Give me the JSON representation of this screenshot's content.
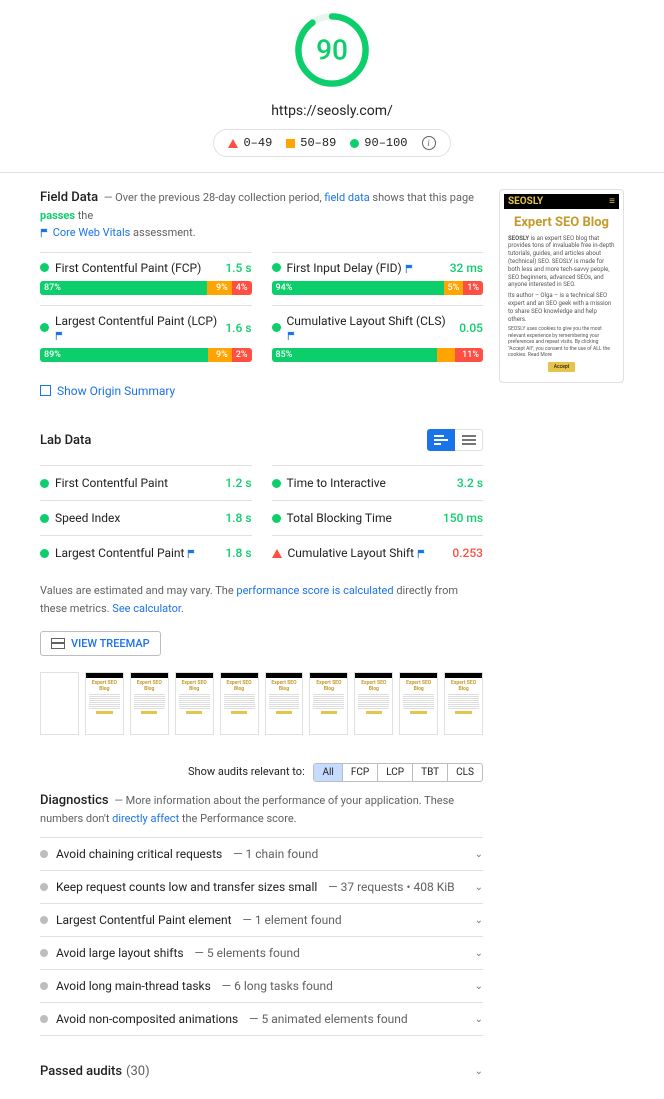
{
  "colors": {
    "good": "#0cce6b",
    "avg": "#ffa400",
    "poor": "#ff4e42",
    "link": "#1a73e8",
    "text_muted": "#616161"
  },
  "header": {
    "score": 90,
    "score_color": "#0cce6b",
    "gauge_percent": 90,
    "url": "https://seosly.com/",
    "legend": {
      "poor": "0–49",
      "avg": "50–89",
      "good": "90–100"
    }
  },
  "preview": {
    "brand": "SEOSLY",
    "title": "Expert SEO Blog",
    "p1_prefix": "SEOSLY",
    "p1": " is an expert SEO blog that provides tons of invaluable free in-depth tutorials, guides, and articles about (technical) SEO. SEOSLY is made for both less and more tech-savvy people, SEO beginners, advanced SEOs, and anyone interested in SEO.",
    "p2": "Its author – Olga – is a technical SEO expert and an SEO geek with a mission to share SEO knowledge and help others.",
    "p3": "SEOSLY uses cookies to give you the most relevant experience by remembering your preferences and repeat visits. By clicking \"Accept All\", you consent to the use of ALL the cookies. Read More"
  },
  "field": {
    "title": "Field Data",
    "desc_prefix": "Over the previous 28-day collection period, ",
    "desc_link": "field data",
    "desc_mid": " shows that this page ",
    "desc_status": "passes",
    "desc_suffix": " the ",
    "cwv_link": "Core Web Vitals",
    "cwv_suffix": " assessment.",
    "origin": "Show Origin Summary",
    "metrics": [
      {
        "name": "First Contentful Paint (FCP)",
        "flag": false,
        "value": "1.5 s",
        "status": "good",
        "dist": [
          87,
          9,
          4
        ],
        "show": [
          "87%",
          "9%",
          "4%"
        ]
      },
      {
        "name": "First Input Delay (FID)",
        "flag": true,
        "value": "32 ms",
        "status": "good",
        "dist": [
          94,
          5,
          1
        ],
        "show": [
          "94%",
          "5%",
          "1%"
        ]
      },
      {
        "name": "Largest Contentful Paint (LCP)",
        "flag": true,
        "value": "1.6 s",
        "status": "good",
        "dist": [
          89,
          9,
          2
        ],
        "show": [
          "89%",
          "9%",
          "2%"
        ]
      },
      {
        "name": "Cumulative Layout Shift (CLS)",
        "flag": true,
        "value": "0.05",
        "status": "good",
        "dist": [
          85,
          5,
          11
        ],
        "show": [
          "85%",
          "5%",
          "11%"
        ],
        "hide_mid_label": true
      }
    ]
  },
  "lab": {
    "title": "Lab Data",
    "note_prefix": "Values are estimated and may vary. The ",
    "note_link1": "performance score is calculated",
    "note_mid": " directly from these metrics. ",
    "note_link2": "See calculator",
    "treemap": "VIEW TREEMAP",
    "metrics": [
      {
        "name": "First Contentful Paint",
        "flag": false,
        "value": "1.2 s",
        "status": "good"
      },
      {
        "name": "Time to Interactive",
        "flag": false,
        "value": "3.2 s",
        "status": "good"
      },
      {
        "name": "Speed Index",
        "flag": false,
        "value": "1.8 s",
        "status": "good"
      },
      {
        "name": "Total Blocking Time",
        "flag": false,
        "value": "150 ms",
        "status": "good"
      },
      {
        "name": "Largest Contentful Paint",
        "flag": true,
        "value": "1.8 s",
        "status": "good"
      },
      {
        "name": "Cumulative Layout Shift",
        "flag": true,
        "value": "0.253",
        "status": "poor"
      }
    ]
  },
  "filmstrip_frames": 10,
  "filter": {
    "label": "Show audits relevant to:",
    "options": [
      "All",
      "FCP",
      "LCP",
      "TBT",
      "CLS"
    ],
    "active": 0
  },
  "diagnostics": {
    "title": "Diagnostics",
    "desc_prefix": "More information about the performance of your application. These numbers don't ",
    "desc_link": "directly affect",
    "desc_suffix": " the Performance score.",
    "items": [
      {
        "title": "Avoid chaining critical requests",
        "detail": "1 chain found"
      },
      {
        "title": "Keep request counts low and transfer sizes small",
        "detail": "37 requests • 408 KiB"
      },
      {
        "title": "Largest Contentful Paint element",
        "detail": "1 element found"
      },
      {
        "title": "Avoid large layout shifts",
        "detail": "5 elements found"
      },
      {
        "title": "Avoid long main-thread tasks",
        "detail": "6 long tasks found"
      },
      {
        "title": "Avoid non-composited animations",
        "detail": "5 animated elements found"
      }
    ]
  },
  "passed": {
    "title": "Passed audits",
    "count": "(30)"
  }
}
